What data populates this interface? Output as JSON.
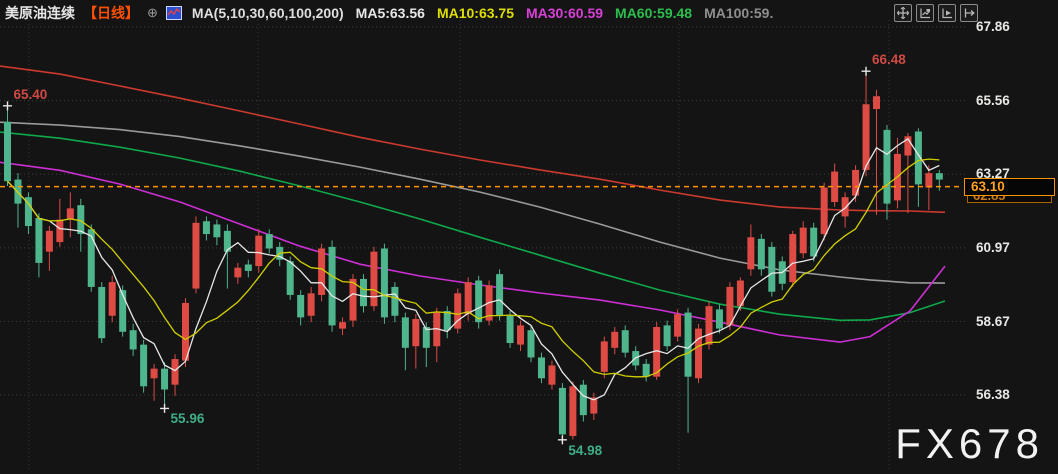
{
  "header": {
    "symbol": "美原油连续",
    "period": "【日线】",
    "period_color": "#ff5000",
    "expand_glyph": "⊕",
    "ma_params": "MA(5,10,30,60,100,200)",
    "ma_values": [
      {
        "label": "MA5:63.56",
        "color": "#e8e8e8"
      },
      {
        "label": "MA10:63.75",
        "color": "#dede00"
      },
      {
        "label": "MA30:60.59",
        "color": "#d93fd9"
      },
      {
        "label": "MA60:59.48",
        "color": "#2cbf4e"
      },
      {
        "label": "MA100:59.",
        "color": "#8f8f8f"
      }
    ]
  },
  "toolbar": {
    "icons": [
      "crosshair",
      "indicator-window",
      "playback",
      "goto-latest"
    ]
  },
  "price_label": {
    "current": "63.10",
    "behind": "62.85"
  },
  "watermark": "FX678",
  "chart_data": {
    "type": "candlestick",
    "title": "美原油连续 日线",
    "y_ticks": [
      67.86,
      65.56,
      63.27,
      60.97,
      58.67,
      56.38
    ],
    "x_gridlines": [
      29,
      258,
      460,
      679,
      889
    ],
    "grid": true,
    "up_color": "#de4b45",
    "down_color": "#4fb58d",
    "current_price": 63.1,
    "current_line_color": "#ff9400",
    "annotations": [
      {
        "text": "65.40",
        "price": 65.4,
        "candle": 0,
        "color": "red",
        "pos": "high"
      },
      {
        "text": "66.48",
        "price": 66.48,
        "candle": 82,
        "color": "red",
        "pos": "high"
      },
      {
        "text": "55.96",
        "price": 55.96,
        "candle": 15,
        "color": "green",
        "pos": "low"
      },
      {
        "text": "54.98",
        "price": 54.98,
        "candle": 53,
        "color": "green",
        "pos": "low"
      }
    ],
    "candles": [
      [
        64.9,
        65.4,
        62.9,
        63.05
      ],
      [
        63.1,
        63.3,
        61.6,
        62.35
      ],
      [
        62.55,
        62.7,
        61.4,
        61.65
      ],
      [
        61.9,
        62.05,
        60.05,
        60.5
      ],
      [
        60.85,
        61.65,
        60.25,
        61.5
      ],
      [
        61.15,
        62.5,
        61.0,
        61.85
      ],
      [
        61.85,
        62.7,
        61.3,
        62.2
      ],
      [
        62.3,
        62.5,
        60.85,
        61.4
      ],
      [
        61.55,
        61.7,
        59.6,
        59.75
      ],
      [
        59.75,
        59.9,
        58.0,
        58.15
      ],
      [
        58.85,
        60.1,
        58.65,
        59.9
      ],
      [
        59.65,
        59.8,
        58.2,
        58.35
      ],
      [
        58.4,
        58.6,
        57.6,
        57.8
      ],
      [
        57.95,
        58.1,
        56.45,
        56.65
      ],
      [
        56.9,
        57.35,
        56.2,
        57.2
      ],
      [
        57.2,
        57.4,
        55.96,
        56.55
      ],
      [
        56.7,
        57.65,
        56.35,
        57.5
      ],
      [
        57.45,
        59.4,
        57.25,
        59.25
      ],
      [
        59.7,
        61.95,
        59.55,
        61.75
      ],
      [
        61.8,
        61.95,
        61.2,
        61.4
      ],
      [
        61.7,
        61.85,
        61.05,
        61.3
      ],
      [
        61.5,
        61.7,
        59.7,
        60.85
      ],
      [
        60.05,
        60.5,
        59.85,
        60.35
      ],
      [
        60.45,
        60.6,
        60.05,
        60.25
      ],
      [
        60.4,
        61.55,
        60.2,
        61.35
      ],
      [
        61.4,
        61.55,
        60.8,
        60.95
      ],
      [
        61.0,
        61.15,
        60.4,
        60.6
      ],
      [
        60.55,
        60.7,
        59.35,
        59.5
      ],
      [
        59.5,
        59.65,
        58.55,
        58.8
      ],
      [
        58.85,
        59.75,
        58.65,
        59.55
      ],
      [
        59.5,
        61.1,
        59.3,
        60.95
      ],
      [
        61.0,
        61.2,
        58.35,
        58.55
      ],
      [
        58.45,
        58.8,
        58.25,
        58.65
      ],
      [
        58.7,
        60.15,
        58.5,
        60.0
      ],
      [
        60.0,
        60.15,
        58.95,
        59.15
      ],
      [
        59.15,
        61.0,
        59.0,
        60.85
      ],
      [
        60.95,
        61.1,
        58.6,
        58.8
      ],
      [
        59.75,
        59.9,
        58.65,
        58.85
      ],
      [
        58.8,
        58.95,
        57.15,
        57.85
      ],
      [
        57.9,
        58.9,
        57.2,
        58.75
      ],
      [
        58.5,
        58.65,
        57.25,
        57.85
      ],
      [
        57.9,
        59.1,
        57.4,
        58.95
      ],
      [
        59.0,
        59.15,
        58.15,
        58.4
      ],
      [
        58.45,
        59.7,
        58.3,
        59.55
      ],
      [
        58.9,
        60.05,
        58.7,
        59.9
      ],
      [
        59.95,
        60.1,
        58.45,
        58.65
      ],
      [
        58.7,
        59.95,
        58.55,
        59.8
      ],
      [
        60.15,
        60.3,
        58.7,
        58.85
      ],
      [
        58.85,
        59.0,
        57.85,
        58.0
      ],
      [
        57.95,
        58.7,
        57.75,
        58.55
      ],
      [
        58.4,
        58.55,
        57.4,
        57.55
      ],
      [
        57.55,
        57.7,
        56.75,
        56.9
      ],
      [
        56.7,
        57.45,
        56.55,
        57.3
      ],
      [
        56.6,
        56.75,
        54.98,
        55.15
      ],
      [
        55.1,
        56.8,
        54.99,
        56.65
      ],
      [
        56.7,
        56.85,
        55.55,
        55.75
      ],
      [
        55.8,
        56.45,
        55.6,
        56.3
      ],
      [
        57.1,
        58.2,
        56.9,
        58.05
      ],
      [
        57.85,
        58.5,
        57.65,
        58.35
      ],
      [
        58.4,
        58.55,
        57.55,
        57.7
      ],
      [
        57.75,
        57.9,
        57.15,
        57.3
      ],
      [
        57.35,
        57.5,
        56.8,
        56.95
      ],
      [
        56.95,
        58.65,
        56.85,
        58.5
      ],
      [
        58.55,
        58.7,
        57.75,
        57.9
      ],
      [
        58.2,
        59.05,
        58.05,
        58.9
      ],
      [
        58.95,
        59.1,
        55.2,
        56.95
      ],
      [
        56.9,
        58.6,
        56.75,
        58.45
      ],
      [
        57.95,
        59.3,
        57.8,
        59.15
      ],
      [
        59.05,
        59.2,
        58.3,
        58.45
      ],
      [
        58.55,
        59.9,
        58.4,
        59.75
      ],
      [
        59.15,
        60.05,
        59.0,
        59.95
      ],
      [
        60.3,
        61.7,
        60.1,
        61.3
      ],
      [
        61.25,
        61.4,
        60.1,
        60.3
      ],
      [
        61.0,
        61.15,
        59.45,
        59.6
      ],
      [
        60.55,
        60.7,
        59.65,
        59.85
      ],
      [
        59.9,
        61.5,
        59.75,
        61.4
      ],
      [
        60.8,
        61.8,
        60.65,
        61.6
      ],
      [
        61.6,
        61.75,
        60.55,
        60.7
      ],
      [
        61.4,
        63.0,
        61.2,
        62.85
      ],
      [
        62.4,
        63.6,
        62.25,
        63.35
      ],
      [
        61.95,
        62.7,
        61.6,
        62.55
      ],
      [
        62.6,
        63.55,
        62.4,
        63.4
      ],
      [
        63.4,
        66.48,
        63.2,
        65.45
      ],
      [
        65.3,
        65.9,
        62.0,
        65.7
      ],
      [
        64.65,
        64.8,
        61.85,
        62.35
      ],
      [
        62.45,
        64.4,
        62.2,
        63.9
      ],
      [
        63.85,
        64.55,
        62.05,
        64.45
      ],
      [
        64.6,
        64.7,
        62.25,
        62.95
      ],
      [
        62.85,
        63.55,
        62.15,
        63.3
      ],
      [
        63.3,
        63.4,
        62.75,
        63.1
      ]
    ],
    "overlays": {
      "ma5": {
        "window": 5,
        "color": "#e8e8e8"
      },
      "ma10": {
        "window": 10,
        "color": "#cfcf00"
      },
      "ma30": {
        "color": "#cc2fd4",
        "points": [
          [
            0,
            63.64
          ],
          [
            60,
            63.39
          ],
          [
            120,
            62.96
          ],
          [
            180,
            62.4
          ],
          [
            240,
            61.71
          ],
          [
            300,
            61.02
          ],
          [
            360,
            60.46
          ],
          [
            420,
            60.09
          ],
          [
            480,
            59.81
          ],
          [
            540,
            59.56
          ],
          [
            600,
            59.34
          ],
          [
            660,
            59.03
          ],
          [
            720,
            58.65
          ],
          [
            780,
            58.25
          ],
          [
            840,
            58.03
          ],
          [
            870,
            58.2
          ],
          [
            910,
            59.0
          ],
          [
            945,
            60.4
          ]
        ]
      },
      "ma60": {
        "color": "#0fa84a",
        "points": [
          [
            0,
            64.58
          ],
          [
            60,
            64.39
          ],
          [
            120,
            64.11
          ],
          [
            180,
            63.77
          ],
          [
            240,
            63.36
          ],
          [
            300,
            62.9
          ],
          [
            360,
            62.4
          ],
          [
            420,
            61.87
          ],
          [
            480,
            61.3
          ],
          [
            540,
            60.74
          ],
          [
            600,
            60.18
          ],
          [
            660,
            59.65
          ],
          [
            720,
            59.21
          ],
          [
            780,
            58.9
          ],
          [
            840,
            58.71
          ],
          [
            870,
            58.72
          ],
          [
            910,
            58.95
          ],
          [
            945,
            59.31
          ]
        ]
      },
      "ma100": {
        "color": "#9a9a9a",
        "points": [
          [
            0,
            64.89
          ],
          [
            60,
            64.8
          ],
          [
            120,
            64.66
          ],
          [
            180,
            64.44
          ],
          [
            240,
            64.15
          ],
          [
            300,
            63.83
          ],
          [
            360,
            63.49
          ],
          [
            420,
            63.11
          ],
          [
            480,
            62.71
          ],
          [
            540,
            62.24
          ],
          [
            600,
            61.71
          ],
          [
            660,
            61.15
          ],
          [
            720,
            60.65
          ],
          [
            780,
            60.28
          ],
          [
            840,
            60.06
          ],
          [
            870,
            59.97
          ],
          [
            910,
            59.88
          ],
          [
            945,
            59.87
          ]
        ]
      },
      "ma200": {
        "color": "#cc3a2e",
        "points": [
          [
            0,
            66.64
          ],
          [
            60,
            66.39
          ],
          [
            120,
            66.02
          ],
          [
            180,
            65.64
          ],
          [
            240,
            65.24
          ],
          [
            300,
            64.83
          ],
          [
            360,
            64.42
          ],
          [
            420,
            64.05
          ],
          [
            480,
            63.71
          ],
          [
            540,
            63.4
          ],
          [
            600,
            63.11
          ],
          [
            660,
            62.77
          ],
          [
            720,
            62.46
          ],
          [
            780,
            62.24
          ],
          [
            840,
            62.15
          ],
          [
            870,
            62.13
          ],
          [
            910,
            62.12
          ],
          [
            945,
            62.08
          ]
        ]
      }
    }
  }
}
